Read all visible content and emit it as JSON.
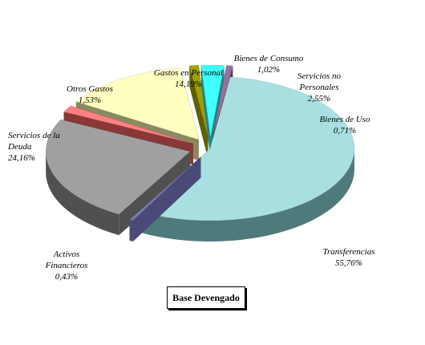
{
  "chart_data": {
    "type": "pie",
    "title": "",
    "subtitle": "",
    "slices": [
      {
        "label": "Transferencias",
        "value": 55.76,
        "value_label": "55,76%",
        "color": "#a8e0e2",
        "side_color": "#4f7a7c"
      },
      {
        "label": "Activos\nFinancieros",
        "value": 0.43,
        "value_label": "0,43%",
        "color": "#7a7aa8",
        "side_color": "#4a4a78"
      },
      {
        "label": "Servicios de la\nDeuda",
        "value": 24.16,
        "value_label": "24,16%",
        "color": "#a0a0a0",
        "side_color": "#505050"
      },
      {
        "label": "Otros Gastos",
        "value": 1.53,
        "value_label": "1,53%",
        "color": "#ff8080",
        "side_color": "#883838"
      },
      {
        "label": "Gastos en Personal",
        "value": 14.19,
        "value_label": "14,19%",
        "color": "#ffffc0",
        "side_color": "#8a8a60"
      },
      {
        "label": "Bienes de Consumo",
        "value": 1.02,
        "value_label": "1,02%",
        "color": "#a0a000",
        "side_color": "#606000"
      },
      {
        "label": "Servicios no\nPersonales",
        "value": 2.55,
        "value_label": "2,55%",
        "color": "#40ffff",
        "side_color": "#208888"
      },
      {
        "label": "Bienes de Uso",
        "value": 0.71,
        "value_label": "0,71%",
        "color": "#9a6fa0",
        "side_color": "#5a3a60"
      }
    ],
    "legend": "none",
    "footer_label": "Base Devengado"
  }
}
